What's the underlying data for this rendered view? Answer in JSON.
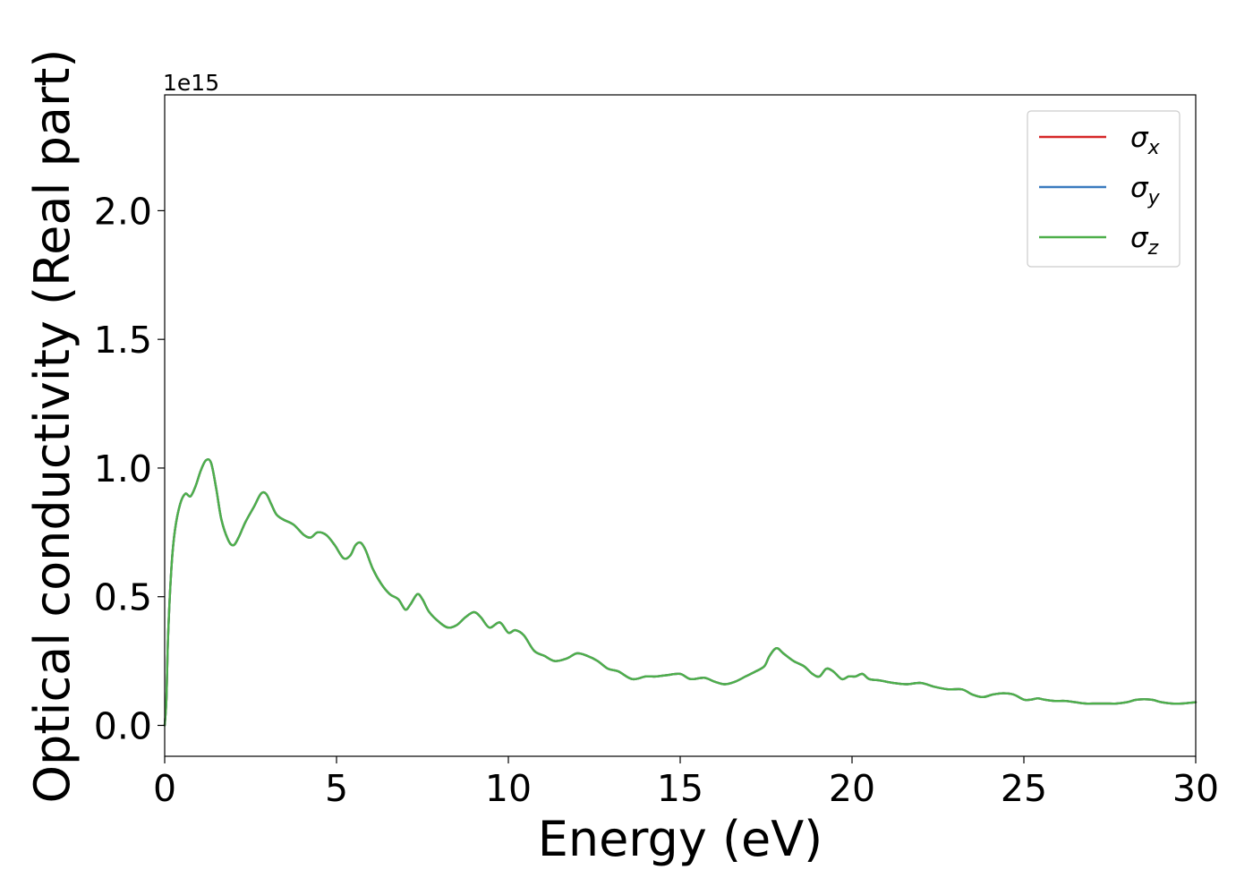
{
  "chart_data": {
    "type": "line",
    "xlabel": "Energy (eV)",
    "ylabel": "Optical conductivity (Real part)",
    "y_offset_label": "1e15",
    "y_scale": 1000000000000000.0,
    "xlim": [
      0,
      30
    ],
    "ylim": [
      -0.12,
      2.45
    ],
    "x_ticks": [
      0,
      5,
      10,
      15,
      20,
      25,
      30
    ],
    "x_tick_labels": [
      "0",
      "5",
      "10",
      "15",
      "20",
      "25",
      "30"
    ],
    "y_ticks": [
      0.0,
      0.5,
      1.0,
      1.5,
      2.0
    ],
    "y_tick_labels": [
      "0.0",
      "0.5",
      "1.0",
      "1.5",
      "2.0"
    ],
    "grid": false,
    "legend_position": "top-right",
    "series": [
      {
        "name": "σ",
        "subscript": "x",
        "color": "#d62728"
      },
      {
        "name": "σ",
        "subscript": "y",
        "color": "#3a7bbf"
      },
      {
        "name": "σ",
        "subscript": "z",
        "color": "#4daf4a"
      }
    ],
    "x": [
      0,
      0.05,
      0.1,
      0.2,
      0.3,
      0.45,
      0.6,
      0.75,
      0.9,
      1.05,
      1.2,
      1.35,
      1.5,
      1.65,
      1.85,
      2.0,
      2.15,
      2.35,
      2.6,
      2.8,
      2.95,
      3.1,
      3.25,
      3.45,
      3.75,
      4.05,
      4.25,
      4.45,
      4.7,
      4.95,
      5.2,
      5.4,
      5.55,
      5.7,
      5.85,
      6.05,
      6.3,
      6.55,
      6.8,
      7.0,
      7.15,
      7.35,
      7.5,
      7.7,
      8.0,
      8.25,
      8.5,
      8.75,
      9.0,
      9.2,
      9.45,
      9.75,
      10.0,
      10.2,
      10.45,
      10.75,
      11.05,
      11.35,
      11.7,
      12.0,
      12.3,
      12.6,
      12.9,
      13.2,
      13.6,
      14.0,
      14.3,
      14.6,
      15.0,
      15.3,
      15.7,
      16.0,
      16.3,
      16.6,
      16.9,
      17.2,
      17.45,
      17.6,
      17.8,
      18.0,
      18.3,
      18.6,
      18.85,
      19.05,
      19.25,
      19.45,
      19.7,
      19.9,
      20.1,
      20.3,
      20.5,
      20.8,
      21.2,
      21.6,
      22.0,
      22.4,
      22.8,
      23.2,
      23.5,
      23.8,
      24.1,
      24.4,
      24.7,
      25.0,
      25.2,
      25.4,
      25.6,
      25.9,
      26.2,
      26.5,
      26.8,
      27.1,
      27.4,
      27.7,
      28.0,
      28.3,
      28.7,
      29.0,
      29.3,
      29.6,
      30.0
    ],
    "y": [
      0.0,
      0.1,
      0.35,
      0.62,
      0.76,
      0.86,
      0.9,
      0.89,
      0.93,
      0.99,
      1.03,
      1.02,
      0.92,
      0.8,
      0.72,
      0.7,
      0.73,
      0.79,
      0.85,
      0.9,
      0.9,
      0.86,
      0.82,
      0.8,
      0.78,
      0.74,
      0.73,
      0.75,
      0.74,
      0.7,
      0.65,
      0.66,
      0.7,
      0.71,
      0.68,
      0.61,
      0.55,
      0.51,
      0.49,
      0.45,
      0.47,
      0.51,
      0.49,
      0.44,
      0.4,
      0.38,
      0.39,
      0.42,
      0.44,
      0.42,
      0.38,
      0.4,
      0.36,
      0.37,
      0.35,
      0.29,
      0.27,
      0.25,
      0.26,
      0.28,
      0.27,
      0.25,
      0.22,
      0.21,
      0.18,
      0.19,
      0.19,
      0.195,
      0.2,
      0.18,
      0.185,
      0.17,
      0.16,
      0.17,
      0.19,
      0.21,
      0.23,
      0.27,
      0.3,
      0.28,
      0.25,
      0.23,
      0.2,
      0.19,
      0.22,
      0.21,
      0.18,
      0.19,
      0.19,
      0.2,
      0.18,
      0.175,
      0.165,
      0.16,
      0.165,
      0.15,
      0.14,
      0.14,
      0.12,
      0.11,
      0.12,
      0.125,
      0.12,
      0.1,
      0.1,
      0.105,
      0.1,
      0.095,
      0.095,
      0.09,
      0.085,
      0.085,
      0.085,
      0.085,
      0.09,
      0.1,
      0.1,
      0.09,
      0.085,
      0.085,
      0.09
    ]
  }
}
